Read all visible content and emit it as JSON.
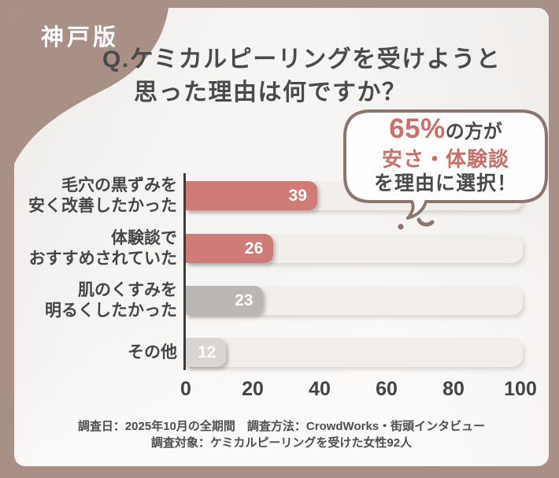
{
  "badge": {
    "label": "神戸版"
  },
  "title": {
    "line1": "Q.ケミカルピーリングを受けようと",
    "line2": "思った理由は何ですか？"
  },
  "bubble": {
    "highlight_pct": "65%",
    "line1_rest": "の方が",
    "line2": "安さ・体験談",
    "line3": "を理由に選択！"
  },
  "chart_data": {
    "type": "bar",
    "orientation": "horizontal",
    "title": "Q.ケミカルピーリングを受けようと思った理由は何ですか？",
    "categories": [
      "毛穴の黒ずみを安く改善したかった",
      "体験談でおすすめされていた",
      "肌のくすみを明るくしたかった",
      "その他"
    ],
    "values": [
      39,
      26,
      23,
      12
    ],
    "xlim": [
      0,
      100
    ],
    "x_ticks": [
      0,
      20,
      40,
      60,
      80,
      100
    ],
    "grid": false,
    "legend": false,
    "rows": [
      {
        "label_line1": "毛穴の黒ずみを",
        "label_line2": "安く改善したかった",
        "value": 39,
        "color": "#cf7b77"
      },
      {
        "label_line1": "体験談で",
        "label_line2": "おすすめされていた",
        "value": 26,
        "color": "#cf7b77"
      },
      {
        "label_line1": "肌のくすみを",
        "label_line2": "明るくしたかった",
        "value": 23,
        "color": "#b9b6b4"
      },
      {
        "label_line1": "その他",
        "label_line2": "",
        "value": 12,
        "color": "#d8d5d2"
      }
    ]
  },
  "footer": {
    "line1": "調査日：2025年10月の全期間　調査方法：CrowdWorks・街頭インタビュー",
    "line2": "調査対象：ケミカルピーリングを受けた女性92人"
  },
  "colors": {
    "frame": "#a99086",
    "ink": "#4a4a4c",
    "accent": "#cf7b77",
    "accent_text": "#c96f6b",
    "gray_bar": "#b9b6b4",
    "light_gray_bar": "#d8d5d2",
    "track": "#f1eeeb",
    "bubble_border": "#8a766e"
  }
}
